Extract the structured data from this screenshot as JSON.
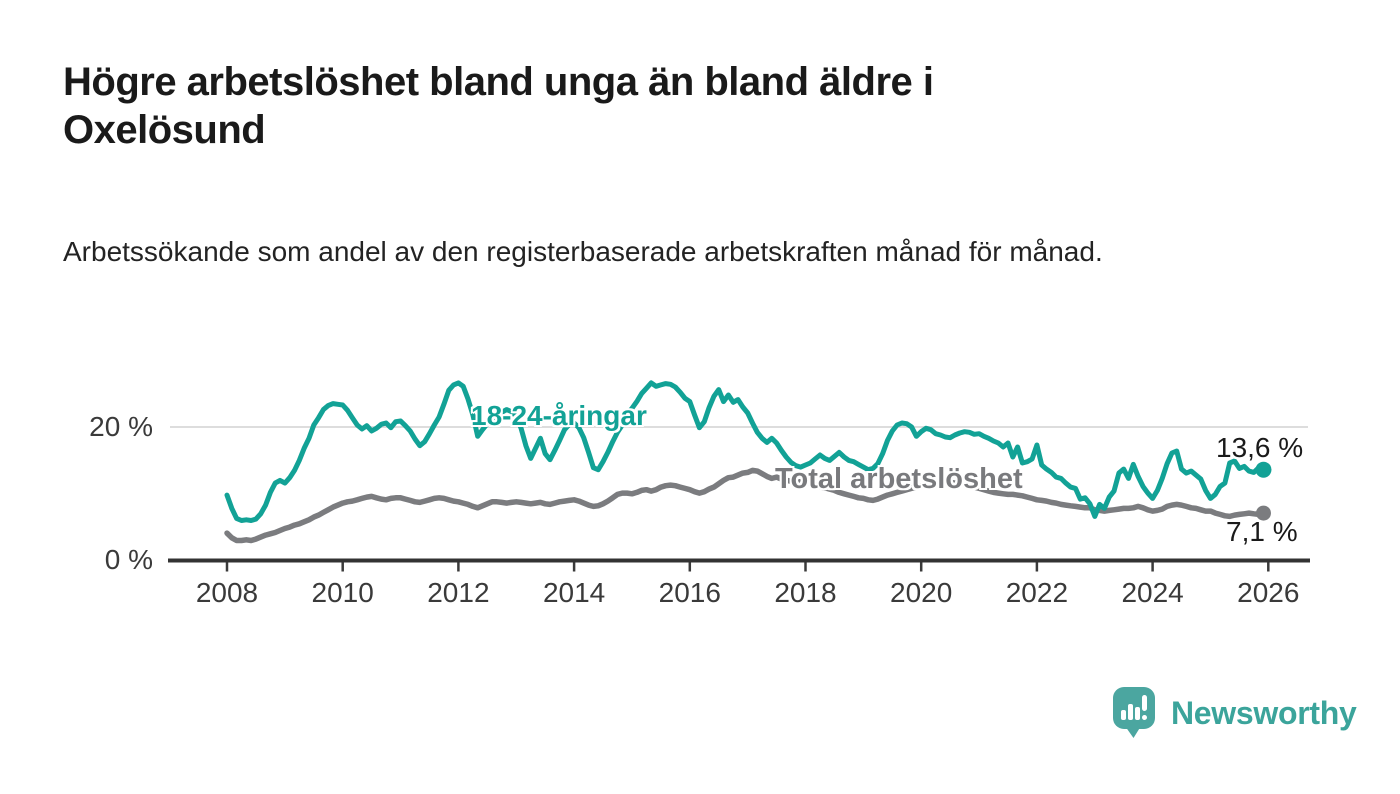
{
  "header": {
    "title": "Högre arbetslöshet bland unga än bland äldre i Oxelösund",
    "subtitle": "Arbetssökande som andel av den registerbaserade arbetskraften månad för månad."
  },
  "chart_data": {
    "type": "line",
    "title": "Högre arbetslöshet bland unga än bland äldre i Oxelösund",
    "xlabel": "",
    "ylabel": "Arbetssökande som andel av den registerbaserade arbetskraften",
    "unit": "%",
    "frequency": "monthly",
    "x_start": "2008-01",
    "x_end": "2025-12",
    "x_ticks": [
      2008,
      2010,
      2012,
      2014,
      2016,
      2018,
      2020,
      2022,
      2024,
      2026
    ],
    "x_tick_labels": [
      "2008",
      "2010",
      "2012",
      "2014",
      "2016",
      "2018",
      "2020",
      "2022",
      "2024",
      "2026"
    ],
    "y_tick_labels": [
      "20 %",
      "0 %"
    ],
    "y_ticks_values": [
      20,
      0
    ],
    "ylim": [
      0,
      28
    ],
    "grid": "y-only-at-20",
    "legend_position": "inline-labels-on-lines",
    "series": [
      {
        "name": "18-24-åringar",
        "color": "#12a296",
        "end_value": 13.6,
        "end_value_label": "13,6 %",
        "values": [
          9.8,
          7.8,
          6.3,
          6.0,
          6.1,
          6.0,
          6.2,
          7.0,
          8.3,
          10.2,
          11.6,
          12.0,
          11.6,
          12.4,
          13.5,
          15.0,
          16.8,
          18.3,
          20.3,
          21.4,
          22.6,
          23.2,
          23.5,
          23.4,
          23.3,
          22.5,
          21.4,
          20.3,
          19.7,
          20.2,
          19.4,
          19.8,
          20.4,
          20.6,
          19.9,
          20.8,
          20.9,
          20.2,
          19.4,
          18.2,
          17.2,
          17.8,
          19.0,
          20.3,
          21.5,
          23.4,
          25.5,
          26.3,
          26.6,
          26.1,
          24.2,
          21.8,
          18.6,
          19.6,
          20.5,
          21.0,
          21.6,
          22.2,
          22.6,
          22.3,
          21.6,
          19.8,
          17.2,
          15.3,
          16.8,
          18.3,
          16.0,
          15.1,
          16.5,
          18.0,
          19.6,
          20.4,
          20.6,
          19.9,
          18.4,
          16.2,
          13.9,
          13.6,
          14.8,
          16.2,
          17.8,
          19.2,
          20.3,
          21.9,
          22.8,
          23.8,
          25.0,
          25.8,
          26.6,
          26.1,
          26.3,
          26.5,
          26.4,
          26.0,
          25.2,
          24.3,
          23.8,
          21.8,
          19.9,
          20.8,
          22.9,
          24.6,
          25.6,
          23.8,
          24.8,
          23.7,
          24.1,
          23.0,
          22.1,
          20.6,
          19.2,
          18.3,
          17.7,
          18.3,
          17.6,
          16.5,
          15.5,
          14.7,
          14.2,
          14.0,
          14.3,
          14.6,
          15.2,
          15.8,
          15.3,
          15.0,
          15.6,
          16.2,
          15.5,
          15.0,
          14.8,
          14.4,
          14.0,
          13.6,
          13.8,
          14.5,
          16.0,
          18.0,
          19.4,
          20.3,
          20.6,
          20.5,
          20.0,
          18.6,
          19.3,
          19.8,
          19.6,
          19.0,
          18.8,
          18.5,
          18.4,
          18.8,
          19.1,
          19.3,
          19.2,
          18.9,
          19.0,
          18.6,
          18.3,
          17.9,
          17.6,
          17.0,
          17.6,
          15.5,
          17.0,
          14.6,
          14.8,
          15.2,
          17.3,
          14.3,
          13.7,
          13.2,
          12.5,
          12.3,
          11.6,
          11.0,
          10.8,
          9.2,
          9.4,
          8.5,
          6.6,
          8.4,
          7.8,
          9.5,
          10.4,
          13.1,
          13.7,
          12.3,
          14.4,
          12.6,
          11.1,
          10.1,
          9.3,
          10.5,
          12.3,
          14.5,
          16.1,
          16.4,
          13.7,
          13.1,
          13.4,
          12.8,
          12.2,
          10.5,
          9.3,
          9.9,
          11.1,
          11.6,
          14.6,
          14.9,
          13.8,
          14.1,
          13.4,
          13.2,
          13.9,
          13.6
        ]
      },
      {
        "name": "Total arbetslöshet",
        "color": "#7b7c7f",
        "end_value": 7.1,
        "end_value_label": "7,1 %",
        "values": [
          4.1,
          3.4,
          3.0,
          3.0,
          3.1,
          3.0,
          3.2,
          3.5,
          3.8,
          4.0,
          4.2,
          4.5,
          4.8,
          5.0,
          5.3,
          5.5,
          5.8,
          6.1,
          6.5,
          6.8,
          7.2,
          7.6,
          8.0,
          8.3,
          8.6,
          8.8,
          8.9,
          9.1,
          9.3,
          9.5,
          9.6,
          9.4,
          9.2,
          9.1,
          9.3,
          9.4,
          9.4,
          9.2,
          9.0,
          8.8,
          8.7,
          8.9,
          9.1,
          9.3,
          9.4,
          9.3,
          9.1,
          8.9,
          8.8,
          8.6,
          8.4,
          8.1,
          7.9,
          8.2,
          8.5,
          8.8,
          8.8,
          8.7,
          8.6,
          8.7,
          8.8,
          8.7,
          8.6,
          8.5,
          8.6,
          8.7,
          8.5,
          8.4,
          8.6,
          8.8,
          8.9,
          9.0,
          9.1,
          8.9,
          8.6,
          8.3,
          8.1,
          8.2,
          8.5,
          8.9,
          9.4,
          9.9,
          10.1,
          10.1,
          10.0,
          10.2,
          10.5,
          10.6,
          10.4,
          10.6,
          11.0,
          11.2,
          11.3,
          11.2,
          11.0,
          10.8,
          10.6,
          10.3,
          10.1,
          10.3,
          10.7,
          11.0,
          11.5,
          12.0,
          12.4,
          12.5,
          12.8,
          13.1,
          13.2,
          13.5,
          13.4,
          13.0,
          12.6,
          12.3,
          12.5,
          12.2,
          12.0,
          11.9,
          11.8,
          11.8,
          11.7,
          11.5,
          11.3,
          11.0,
          10.9,
          10.7,
          10.5,
          10.2,
          10.0,
          9.8,
          9.6,
          9.4,
          9.3,
          9.1,
          9.0,
          9.2,
          9.5,
          9.8,
          10.0,
          10.2,
          10.4,
          10.6,
          10.8,
          11.0,
          11.2,
          11.4,
          11.6,
          11.8,
          11.9,
          11.8,
          11.7,
          11.6,
          11.5,
          11.4,
          11.2,
          11.0,
          10.8,
          10.6,
          10.4,
          10.2,
          10.1,
          10.0,
          9.9,
          9.9,
          9.8,
          9.7,
          9.5,
          9.3,
          9.1,
          9.0,
          8.9,
          8.7,
          8.6,
          8.4,
          8.3,
          8.2,
          8.1,
          8.0,
          7.9,
          7.9,
          7.6,
          7.5,
          7.4,
          7.5,
          7.6,
          7.7,
          7.8,
          7.8,
          7.9,
          8.1,
          7.9,
          7.6,
          7.4,
          7.5,
          7.7,
          8.1,
          8.3,
          8.4,
          8.3,
          8.1,
          7.9,
          7.8,
          7.6,
          7.4,
          7.4,
          7.1,
          6.9,
          6.7,
          6.6,
          6.8,
          6.9,
          7.0,
          7.1,
          7.0,
          6.9,
          7.1
        ]
      }
    ]
  },
  "labels": {
    "series_youth": "18-24-åringar",
    "series_total": "Total arbetslöshet",
    "end_youth": "13,6 %",
    "end_total": "7,1 %",
    "y_tick_top": "20 %",
    "y_tick_bottom": "0 %"
  },
  "branding": {
    "logo_text": "Newsworthy",
    "logo_icon": "bar-chart-speech-bubble-icon",
    "logo_color": "#4ba6a0",
    "logo_text_color": "#3ba49b"
  },
  "colors": {
    "youth_line": "#12a296",
    "total_line": "#7b7c7f",
    "gridline": "#dddddd",
    "axis": "#333333",
    "title_text": "#1a1a1a"
  }
}
